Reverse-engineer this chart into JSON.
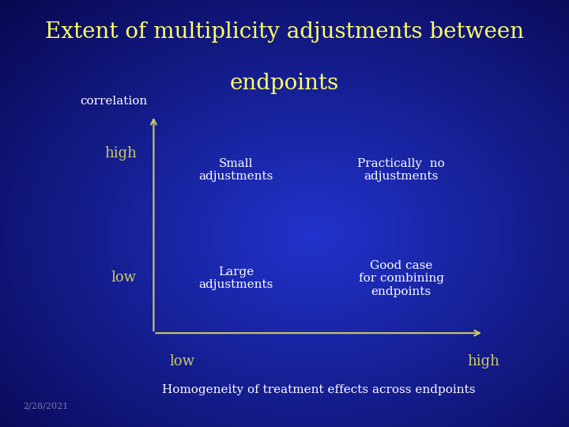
{
  "title_line1": "Extent of multiplicity adjustments between",
  "title_line2": "endpoints",
  "title_color": "#FFFF66",
  "title_fontsize": 20,
  "bg_center_color": "#2233cc",
  "bg_edge_color": "#0a0a60",
  "axis_color": "#CCCC66",
  "correlation_label": "correlation",
  "correlation_color": "#FFFFFF",
  "correlation_fontsize": 11,
  "high_label": "high",
  "low_label_y": "low",
  "low_label_x": "low",
  "high_label_x": "high",
  "axis_label_color": "#CCCC66",
  "axis_label_fontsize": 13,
  "quadrant_text_color": "#FFFFFF",
  "quadrant_fontsize": 11,
  "q1_text": "Small\nadjustments",
  "q2_text": "Practically  no\nadjustments",
  "q3_text": "Large\nadjustments",
  "q4_text": "Good case\nfor combining\nendpoints",
  "xlabel": "Homogeneity of treatment effects across endpoints",
  "xlabel_color": "#FFFFFF",
  "xlabel_fontsize": 11,
  "date_text": "2/28/2021",
  "date_color": "#7777aa",
  "date_fontsize": 8
}
